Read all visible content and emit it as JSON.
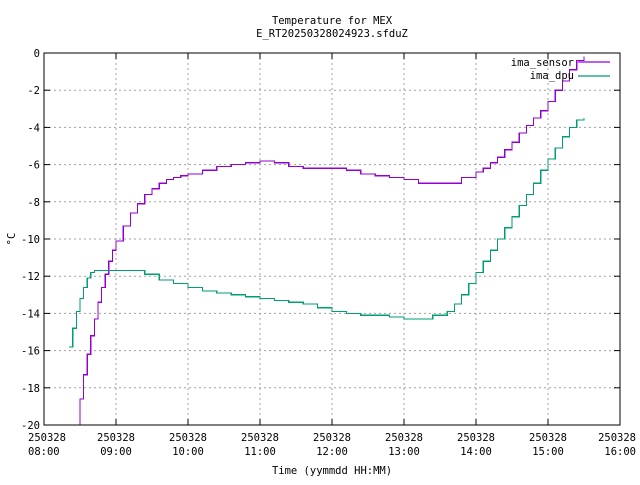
{
  "colors": {
    "ima_sensor": "#9400d3",
    "ima_dpu": "#009e73"
  },
  "chart_data": {
    "type": "line",
    "title": "Temperature for MEX",
    "subtitle": "E_RT20250328024923.sfduZ",
    "xlabel": "Time (yymmdd HH:MM)",
    "ylabel": "°C",
    "xlim": [
      "08:00",
      "16:00"
    ],
    "ylim": [
      -20,
      0
    ],
    "grid": true,
    "legend_position": "top-right",
    "x_ticks": [
      {
        "date": "250328",
        "time": "08:00",
        "x": 0
      },
      {
        "date": "250328",
        "time": "09:00",
        "x": 1
      },
      {
        "date": "250328",
        "time": "10:00",
        "x": 2
      },
      {
        "date": "250328",
        "time": "11:00",
        "x": 3
      },
      {
        "date": "250328",
        "time": "12:00",
        "x": 4
      },
      {
        "date": "250328",
        "time": "13:00",
        "x": 5
      },
      {
        "date": "250328",
        "time": "14:00",
        "x": 6
      },
      {
        "date": "250328",
        "time": "15:00",
        "x": 7
      },
      {
        "date": "250328",
        "time": "16:00",
        "x": 8
      }
    ],
    "y_ticks": [
      "0",
      "-2",
      "-4",
      "-6",
      "-8",
      "-10",
      "-12",
      "-14",
      "-16",
      "-18",
      "-20"
    ],
    "y_tick_values": [
      0,
      -2,
      -4,
      -6,
      -8,
      -10,
      -12,
      -14,
      -16,
      -18,
      -20
    ],
    "series": [
      {
        "name": "ima_sensor",
        "color": "#9400d3",
        "x": [
          0.45,
          0.5,
          0.55,
          0.6,
          0.65,
          0.7,
          0.75,
          0.8,
          0.85,
          0.9,
          0.95,
          1.0,
          1.1,
          1.2,
          1.3,
          1.4,
          1.5,
          1.6,
          1.7,
          1.8,
          1.9,
          2.0,
          2.2,
          2.4,
          2.6,
          2.8,
          3.0,
          3.2,
          3.4,
          3.6,
          3.8,
          4.0,
          4.2,
          4.4,
          4.6,
          4.8,
          5.0,
          5.2,
          5.4,
          5.6,
          5.8,
          6.0,
          6.1,
          6.2,
          6.3,
          6.4,
          6.5,
          6.6,
          6.7,
          6.8,
          6.9,
          7.0,
          7.1,
          7.2,
          7.3,
          7.4,
          7.5
        ],
        "y": [
          -20.0,
          -18.6,
          -17.3,
          -16.2,
          -15.2,
          -14.3,
          -13.4,
          -12.6,
          -11.9,
          -11.2,
          -10.6,
          -10.1,
          -9.3,
          -8.6,
          -8.1,
          -7.6,
          -7.3,
          -7.0,
          -6.8,
          -6.7,
          -6.6,
          -6.5,
          -6.3,
          -6.1,
          -6.0,
          -5.9,
          -5.8,
          -5.9,
          -6.1,
          -6.2,
          -6.2,
          -6.2,
          -6.3,
          -6.5,
          -6.6,
          -6.7,
          -6.8,
          -7.0,
          -7.0,
          -7.0,
          -6.7,
          -6.4,
          -6.2,
          -5.9,
          -5.6,
          -5.2,
          -4.8,
          -4.3,
          -3.9,
          -3.5,
          -3.1,
          -2.6,
          -2.0,
          -1.5,
          -0.9,
          -0.4,
          -0.2
        ]
      },
      {
        "name": "ima_dpu",
        "color": "#009e73",
        "x": [
          0.35,
          0.4,
          0.45,
          0.5,
          0.55,
          0.6,
          0.65,
          0.7,
          0.8,
          0.9,
          1.0,
          1.2,
          1.4,
          1.6,
          1.8,
          2.0,
          2.2,
          2.4,
          2.6,
          2.8,
          3.0,
          3.2,
          3.4,
          3.6,
          3.8,
          4.0,
          4.2,
          4.4,
          4.6,
          4.8,
          5.0,
          5.2,
          5.4,
          5.6,
          5.7,
          5.8,
          5.9,
          6.0,
          6.1,
          6.2,
          6.3,
          6.4,
          6.5,
          6.6,
          6.7,
          6.8,
          6.9,
          7.0,
          7.1,
          7.2,
          7.3,
          7.4,
          7.5
        ],
        "y": [
          -15.8,
          -14.8,
          -13.9,
          -13.2,
          -12.6,
          -12.1,
          -11.8,
          -11.7,
          -11.7,
          -11.7,
          -11.7,
          -11.7,
          -11.9,
          -12.2,
          -12.4,
          -12.6,
          -12.8,
          -12.9,
          -13.0,
          -13.1,
          -13.2,
          -13.3,
          -13.4,
          -13.5,
          -13.7,
          -13.9,
          -14.0,
          -14.1,
          -14.1,
          -14.2,
          -14.3,
          -14.3,
          -14.1,
          -13.9,
          -13.5,
          -13.0,
          -12.4,
          -11.8,
          -11.2,
          -10.6,
          -10.0,
          -9.4,
          -8.8,
          -8.2,
          -7.6,
          -7.0,
          -6.3,
          -5.7,
          -5.1,
          -4.5,
          -4.0,
          -3.6,
          -3.5
        ]
      }
    ]
  }
}
